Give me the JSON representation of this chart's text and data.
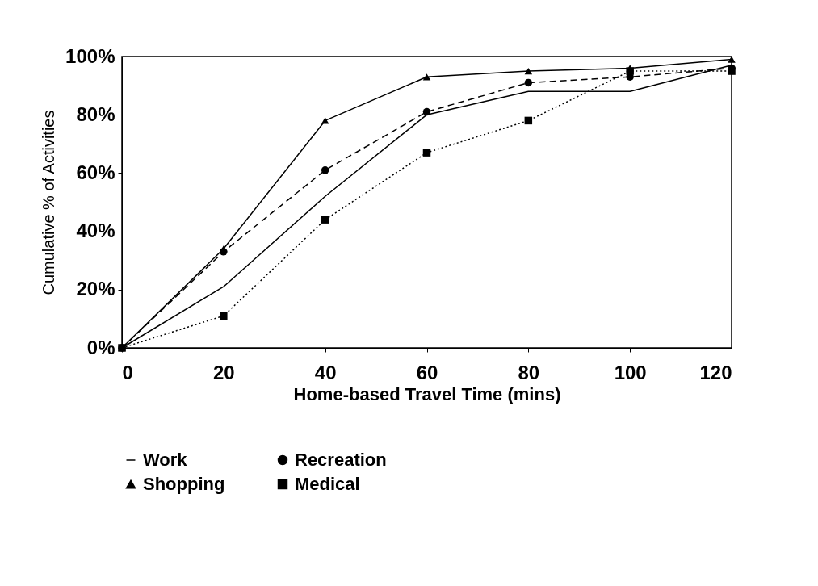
{
  "chart_data": {
    "type": "line",
    "xlabel": "Home-based Travel Time (mins)",
    "ylabel": "Cumulative % of Activities",
    "x": [
      0,
      20,
      40,
      60,
      80,
      100,
      120
    ],
    "series": [
      {
        "name": "Work",
        "color": "#000000",
        "marker": "none",
        "line_style": "solid",
        "values": [
          0,
          21,
          52,
          80,
          88,
          88,
          97
        ]
      },
      {
        "name": "Recreation",
        "color": "#000000",
        "marker": "circle",
        "line_style": "dashed",
        "values": [
          0,
          33,
          61,
          81,
          91,
          93,
          96
        ]
      },
      {
        "name": "Shopping",
        "color": "#000000",
        "marker": "triangle",
        "line_style": "solid",
        "values": [
          0,
          34,
          78,
          93,
          95,
          96,
          99
        ]
      },
      {
        "name": "Medical",
        "color": "#000000",
        "marker": "square",
        "line_style": "dotted",
        "values": [
          0,
          11,
          44,
          67,
          78,
          95,
          95
        ]
      }
    ],
    "xlim": [
      0,
      120
    ],
    "xticks": [
      0,
      20,
      40,
      60,
      80,
      100,
      120
    ],
    "ylim": [
      0,
      100
    ],
    "yticks": [
      {
        "value": 0,
        "label": "0%"
      },
      {
        "value": 20,
        "label": "20%"
      },
      {
        "value": 40,
        "label": "40%"
      },
      {
        "value": 60,
        "label": "60%"
      },
      {
        "value": 80,
        "label": "80%"
      },
      {
        "value": 100,
        "label": "100%"
      }
    ],
    "grid": false,
    "legend": "bottom"
  }
}
